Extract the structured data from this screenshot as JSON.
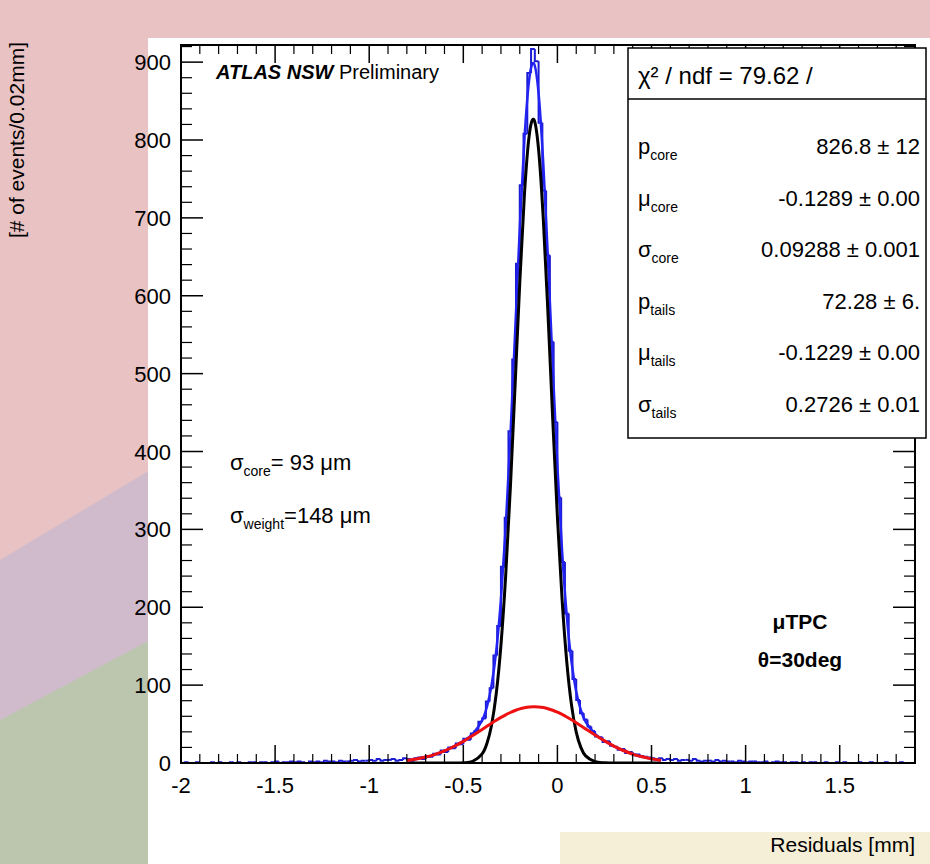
{
  "chart_data": {
    "type": "histogram",
    "title": "ATLAS NSW",
    "subtitle": "Preliminary",
    "x_label": "Residuals [mm]",
    "y_label": "[# of events/0.02mm]",
    "color": "#1c1cd0",
    "bins": [
      -2,
      -1.98,
      -1.96,
      -1.94,
      -1.92,
      -1.9,
      -1.88,
      -1.86,
      -1.84,
      -1.82,
      -1.8,
      -1.78,
      -1.76,
      -1.74,
      -1.72,
      -1.7,
      -1.68,
      -1.66,
      -1.64,
      -1.62,
      -1.6,
      -1.58,
      -1.56,
      -1.54,
      -1.52,
      -1.5,
      -1.48,
      -1.46,
      -1.44,
      -1.42,
      -1.4,
      -1.38,
      -1.36,
      -1.34,
      -1.32,
      -1.3,
      -1.28,
      -1.26,
      -1.24,
      -1.22,
      -1.2,
      -1.18,
      -1.16,
      -1.14,
      -1.12,
      -1.1,
      -1.08,
      -1.06,
      -1.04,
      -1.02,
      -1,
      -0.98,
      -0.96,
      -0.94,
      -0.92,
      -0.9,
      -0.88,
      -0.86,
      -0.84,
      -0.82,
      -0.8,
      -0.78,
      -0.76,
      -0.74,
      -0.72,
      -0.7,
      -0.68,
      -0.66,
      -0.64,
      -0.62,
      -0.6,
      -0.58,
      -0.56,
      -0.54,
      -0.52,
      -0.5,
      -0.48,
      -0.46,
      -0.44,
      -0.42,
      -0.4,
      -0.38,
      -0.36,
      -0.34,
      -0.32,
      -0.3,
      -0.28,
      -0.26,
      -0.24,
      -0.22,
      -0.2,
      -0.18,
      -0.16,
      -0.14,
      -0.12,
      -0.1,
      -0.08,
      -0.06,
      -0.04,
      -0.02,
      0,
      0.02,
      0.04,
      0.06,
      0.08,
      0.1,
      0.12,
      0.14,
      0.16,
      0.18,
      0.2,
      0.22,
      0.24,
      0.26,
      0.28,
      0.3,
      0.32,
      0.34,
      0.36,
      0.38,
      0.4,
      0.42,
      0.44,
      0.46,
      0.48,
      0.5,
      0.52,
      0.54,
      0.56,
      0.58,
      0.6,
      0.62,
      0.64,
      0.66,
      0.68,
      0.7,
      0.72,
      0.74,
      0.76,
      0.78,
      0.8,
      0.82,
      0.84,
      0.86,
      0.88,
      0.9,
      0.92,
      0.94,
      0.96,
      0.98,
      1,
      1.02,
      1.04,
      1.06,
      1.08,
      1.1,
      1.12,
      1.14,
      1.16,
      1.18,
      1.2,
      1.22,
      1.24,
      1.26,
      1.28,
      1.3,
      1.32,
      1.34,
      1.36,
      1.38,
      1.4,
      1.42,
      1.44,
      1.46,
      1.48,
      1.5,
      1.52,
      1.54,
      1.56,
      1.58,
      1.6,
      1.62,
      1.64,
      1.66,
      1.68,
      1.7,
      1.72,
      1.74,
      1.76,
      1.78,
      1.8,
      1.82,
      1.84,
      1.86,
      1.88,
      1.9
    ],
    "counts": [
      0,
      1,
      0,
      0,
      1,
      0,
      0,
      0,
      1,
      0,
      1,
      0,
      0,
      1,
      0,
      1,
      0,
      0,
      1,
      1,
      0,
      1,
      1,
      0,
      1,
      2,
      0,
      1,
      1,
      2,
      1,
      2,
      1,
      0,
      2,
      1,
      2,
      1,
      3,
      2,
      2,
      1,
      3,
      2,
      2,
      3,
      4,
      2,
      3,
      3,
      4,
      3,
      5,
      3,
      4,
      4,
      5,
      3,
      4,
      6,
      5,
      3,
      6,
      7,
      5,
      9,
      8,
      12,
      11,
      16,
      14,
      20,
      19,
      25,
      24,
      31,
      30,
      38,
      41,
      53,
      57,
      79,
      96,
      138,
      176,
      252,
      315,
      426,
      518,
      641,
      742,
      808,
      886,
      917,
      901,
      822,
      735,
      652,
      541,
      438,
      341,
      258,
      192,
      144,
      108,
      81,
      64,
      56,
      47,
      41,
      34,
      33,
      27,
      28,
      22,
      21,
      17,
      18,
      13,
      14,
      10,
      11,
      9,
      8,
      7,
      6,
      5,
      6,
      4,
      5,
      4,
      5,
      3,
      4,
      4,
      3,
      5,
      3,
      2,
      3,
      3,
      2,
      4,
      2,
      3,
      2,
      2,
      1,
      3,
      2,
      1,
      2,
      2,
      1,
      1,
      2,
      0,
      1,
      2,
      1,
      1,
      0,
      1,
      1,
      0,
      1,
      0,
      1,
      1,
      0,
      0,
      1,
      0,
      0,
      1,
      0,
      1,
      0,
      0,
      0,
      1,
      0,
      0,
      1,
      0,
      0,
      0,
      1,
      0,
      0,
      0,
      1,
      0,
      0,
      0
    ],
    "x": [
      -0.8,
      -0.75,
      -0.7,
      -0.65,
      -0.6,
      -0.55,
      -0.5,
      -0.45,
      -0.4,
      -0.375,
      -0.35,
      -0.325,
      -0.3,
      -0.275,
      -0.25,
      -0.225,
      -0.2,
      -0.175,
      -0.15,
      -0.125,
      -0.1,
      -0.075,
      -0.05,
      -0.025,
      0,
      0.025,
      0.05,
      0.075,
      0.1,
      0.125,
      0.15,
      0.2,
      0.25,
      0.3,
      0.35,
      0.4,
      0.45,
      0.5,
      0.55
    ],
    "series": [
      {
        "type": "line",
        "color": "#2323f2",
        "values": [
          3.3,
          5.12,
          7.69,
          11.15,
          15.62,
          21.22,
          28.04,
          37.29,
          54.78,
          71.82,
          99.68,
          143.95,
          210.03,
          301.76,
          418.24,
          551.49,
          686.25,
          801.97,
          877.63,
          898.38,
          859.83,
          769.77,
          646.14,
          510.06,
          380.9,
          271.89,
          188.41,
          129.81,
          91.4,
          67.51,
          52.89,
          37.41,
          28.56,
          21.73,
          16.05,
          11.48,
          7.95,
          5.31,
          3.43
        ]
      },
      {
        "type": "line",
        "color": "#000000",
        "values": [
          0,
          0,
          0,
          0,
          0,
          0.03,
          0.28,
          2.1,
          11.67,
          24.69,
          48.59,
          89.04,
          151.5,
          239.9,
          353.4,
          484.1,
          616.8,
          731.0,
          805.7,
          826.1,
          787.8,
          698.6,
          576.4,
          442.3,
          315.6,
          209.5,
          129.3,
          74.28,
          39.66,
          19.71,
          9.1,
          1.57,
          0.2,
          0.02,
          0,
          0,
          0,
          0,
          0
        ]
      },
      {
        "type": "line",
        "color": "#ee1111",
        "values": [
          3.3,
          5.12,
          7.69,
          11.15,
          15.62,
          21.19,
          27.76,
          35.19,
          43.11,
          47.13,
          51.09,
          54.91,
          58.53,
          61.86,
          64.84,
          67.39,
          69.45,
          70.97,
          71.93,
          72.28,
          72.03,
          71.17,
          69.74,
          67.76,
          65.3,
          62.39,
          59.11,
          55.53,
          51.74,
          47.8,
          43.79,
          35.84,
          28.36,
          21.71,
          16.05,
          11.48,
          7.95,
          5.31,
          3.43
        ]
      }
    ],
    "xlim": [
      -2,
      1.9
    ],
    "ylim": [
      0,
      922
    ],
    "xticks": [
      -2,
      -1.5,
      -1,
      -0.5,
      0,
      0.5,
      1,
      1.5
    ],
    "yticks": [
      0,
      100,
      200,
      300,
      400,
      500,
      600,
      700,
      800,
      900
    ],
    "annotations": [
      {
        "symbol": "σ",
        "sub": "core",
        "text": "= 93 μm"
      },
      {
        "symbol": "σ",
        "sub": "weight",
        "text": "=148 μm"
      },
      {
        "text": "μTPC"
      },
      {
        "text": "θ=30deg"
      }
    ],
    "stats_box": {
      "title": "χ² / ndf = 79.62 /",
      "rows": [
        {
          "name": "p",
          "sub": "core",
          "value": "826.8 ± 12"
        },
        {
          "name": "μ",
          "sub": "core",
          "value": "-0.1289 ± 0.00"
        },
        {
          "name": "σ",
          "sub": "core",
          "value": "0.09288 ± 0.001"
        },
        {
          "name": "p",
          "sub": "tails",
          "value": "72.28 ± 6."
        },
        {
          "name": "μ",
          "sub": "tails",
          "value": "-0.1229 ± 0.00"
        },
        {
          "name": "σ",
          "sub": "tails",
          "value": "0.2726 ± 0.01"
        }
      ]
    }
  }
}
